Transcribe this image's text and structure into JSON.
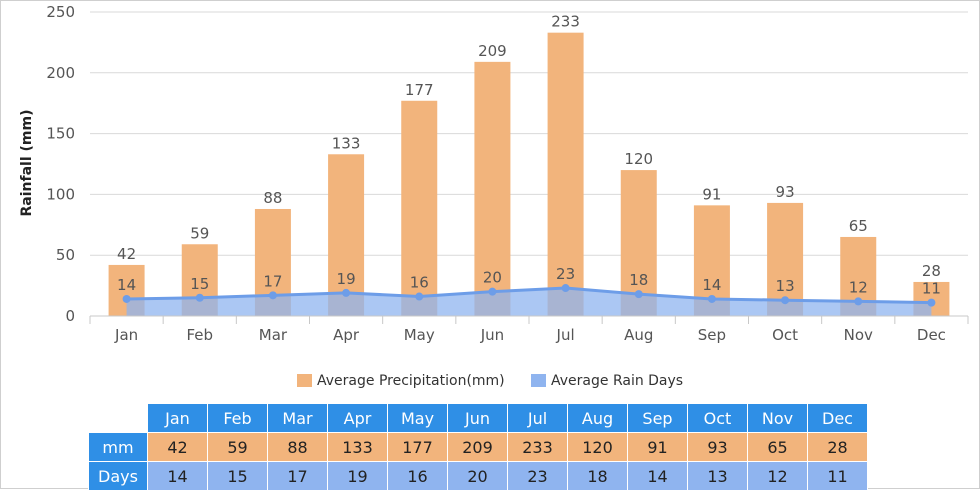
{
  "chart_data": {
    "type": "bar",
    "categories": [
      "Jan",
      "Feb",
      "Mar",
      "Apr",
      "May",
      "Jun",
      "Jul",
      "Aug",
      "Sep",
      "Oct",
      "Nov",
      "Dec"
    ],
    "series": [
      {
        "name": "Average Precipitation(mm)",
        "type": "bar",
        "color": "#f2b47c",
        "values": [
          42,
          59,
          88,
          133,
          177,
          209,
          233,
          120,
          91,
          93,
          65,
          28
        ]
      },
      {
        "name": "Average Rain Days",
        "type": "area-line",
        "color": "#8fb4ef",
        "values": [
          14,
          15,
          17,
          19,
          16,
          20,
          23,
          18,
          14,
          13,
          12,
          11
        ]
      }
    ],
    "ylabel": "Rainfall (mm)",
    "yticks": [
      "0",
      "50",
      "100",
      "150",
      "200",
      "250"
    ],
    "ylim": [
      0,
      250
    ],
    "grid": true,
    "legend": "bottom-center"
  },
  "table": {
    "row_labels": [
      "mm",
      "Days"
    ]
  }
}
